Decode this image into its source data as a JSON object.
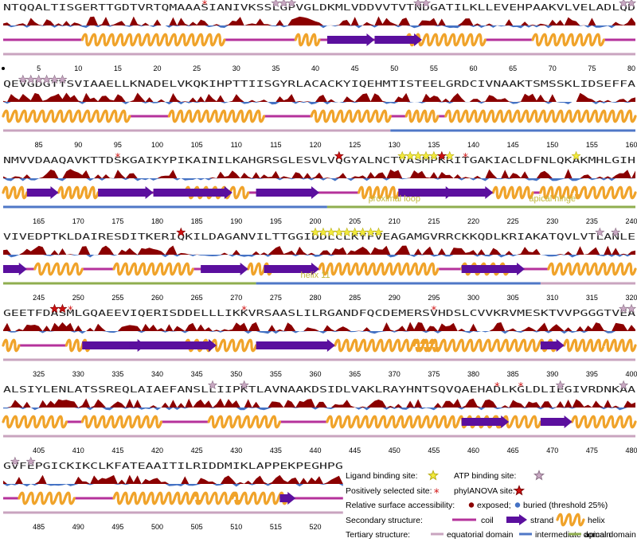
{
  "colors": {
    "exposed": "#8b0000",
    "buried": "#4472c4",
    "coil": "#b5329b",
    "strand": "#5b0f9e",
    "helix": "#f0a32a",
    "equatorial": "#c9a4bf",
    "intermediate": "#4f77c7",
    "apical": "#8fae4f",
    "ligand_star": "#f2ea3d",
    "atp_star": "#c8a8c2",
    "phyl_star": "#cc1111",
    "pos_sel": "#d11414",
    "region_label": "#c2b838"
  },
  "rows": [
    {
      "seq": "NTQQALTISGERTTGDTVRTQMAAASIANIVKSSLGPVGLDKMLVDDVVTVTNDGATILKLLEVEHPAAKVLVELADLQD",
      "start": 1
    },
    {
      "seq": "QEVGDGTTSVIAAELLKNADELVKQKIHPTTIISGYRLACACKYIQEHMTISTEELGRDCIVNAAKTSMSSKLIDSEFFA",
      "start": 81
    },
    {
      "seq": "NMVVDAAQAVKTTDSKGAIKYPIKAINILKAHGRSGLESVLVQGYALNCTVASMPKRITGAKIACLDFNLQKAKMHLGIH",
      "start": 161
    },
    {
      "seq": "VIVEDPTKLDAIRESDITKERIQKILDAGANVILTTGGIDDLCLKYFVEAGAMGVRRCKKQDLKRIAKATQVLVTLANLE",
      "start": 241
    },
    {
      "seq": "GEETFDASMLGQAEEVIQERISDDELLLIKKVRSAASLILRGANDFQCDEMERSVHDSLCVVKRVMESKTVVPGGGTVEA",
      "start": 321
    },
    {
      "seq": "ALSIYLENLATSSREQLAIAEFANSLLIIPKTLAVNAAKDSIDLVAKLRAYHNTSQVQAEHADLKGLDLIEGIVRDNKAA",
      "start": 401
    },
    {
      "seq": "GVFEPGICKIKCLKFATEAAITILRIDDMIKLAPPEKPEGHPG",
      "start": 481
    }
  ],
  "row_ticks": [
    [
      "5",
      "10",
      "15",
      "20",
      "25",
      "30",
      "35",
      "40",
      "45",
      "50",
      "55",
      "60",
      "65",
      "70",
      "75",
      "80"
    ],
    [
      "85",
      "90",
      "95",
      "100",
      "105",
      "110",
      "115",
      "120",
      "125",
      "130",
      "135",
      "140",
      "145",
      "150",
      "155",
      "160"
    ],
    [
      "165",
      "170",
      "175",
      "180",
      "185",
      "190",
      "195",
      "200",
      "205",
      "210",
      "215",
      "220",
      "225",
      "230",
      "235",
      "240"
    ],
    [
      "245",
      "250",
      "255",
      "260",
      "265",
      "270",
      "275",
      "280",
      "285",
      "290",
      "295",
      "300",
      "305",
      "310",
      "315",
      "320"
    ],
    [
      "325",
      "330",
      "335",
      "340",
      "345",
      "350",
      "355",
      "360",
      "365",
      "370",
      "375",
      "380",
      "385",
      "390",
      "395",
      "400"
    ],
    [
      "405",
      "410",
      "415",
      "420",
      "425",
      "430",
      "435",
      "440",
      "445",
      "450",
      "455",
      "460",
      "465",
      "470",
      "475",
      "480"
    ],
    [
      "485",
      "490",
      "495",
      "500",
      "505",
      "510",
      "515",
      "520"
    ]
  ],
  "secondary": [
    {
      "helices": [
        [
          11,
          28
        ],
        [
          38,
          40
        ],
        [
          52,
          61
        ],
        [
          68,
          76
        ]
      ],
      "strands": [
        [
          42,
          47
        ],
        [
          48,
          53
        ]
      ]
    },
    {
      "helices": [
        [
          1,
          16
        ],
        [
          22,
          33
        ],
        [
          40,
          49
        ],
        [
          52,
          55
        ],
        [
          57,
          80
        ]
      ],
      "strands": []
    },
    {
      "helices": [
        [
          1,
          3
        ],
        [
          8,
          12
        ],
        [
          24,
          31
        ],
        [
          46,
          50
        ],
        [
          63,
          67
        ],
        [
          69,
          73
        ],
        [
          73,
          80
        ]
      ],
      "strands": [
        [
          4,
          7
        ],
        [
          13,
          19
        ],
        [
          20,
          29
        ],
        [
          33,
          40
        ],
        [
          51,
          57
        ],
        [
          56,
          62
        ]
      ]
    },
    {
      "helices": [
        [
          5,
          10
        ],
        [
          15,
          24
        ],
        [
          32,
          34
        ],
        [
          41,
          55
        ],
        [
          59,
          64
        ],
        [
          70,
          80
        ]
      ],
      "strands": [
        [
          1,
          3
        ],
        [
          26,
          31
        ],
        [
          34,
          40
        ],
        [
          59,
          66
        ]
      ]
    },
    {
      "helices": [
        [
          1,
          2
        ],
        [
          9,
          11
        ],
        [
          24,
          32
        ],
        [
          43,
          55
        ],
        [
          53,
          70
        ],
        [
          72,
          76
        ],
        [
          77,
          80
        ]
      ],
      "strands": [
        [
          11,
          18
        ],
        [
          17,
          27
        ],
        [
          33,
          42
        ],
        [
          69,
          71
        ]
      ]
    },
    {
      "helices": [
        [
          1,
          8
        ],
        [
          11,
          20
        ],
        [
          27,
          35
        ],
        [
          42,
          50
        ],
        [
          51,
          63
        ],
        [
          63,
          68
        ],
        [
          73,
          80
        ]
      ],
      "strands": [
        [
          59,
          64
        ],
        [
          69,
          72
        ]
      ]
    },
    {
      "helices": [
        [
          3,
          9
        ],
        [
          15,
          25
        ],
        [
          25,
          30
        ],
        [
          30,
          36
        ]
      ],
      "strands": [
        [
          36,
          37
        ]
      ]
    }
  ],
  "tertiary": [
    [
      [
        "equatorial",
        1,
        80
      ]
    ],
    [
      [
        "equatorial",
        1,
        49
      ],
      [
        "intermediate",
        50,
        80
      ]
    ],
    [
      [
        "intermediate",
        1,
        41
      ],
      [
        "apical",
        42,
        80
      ]
    ],
    [
      [
        "apical",
        1,
        32
      ],
      [
        "intermediate",
        33,
        68
      ],
      [
        "equatorial",
        69,
        80
      ]
    ],
    [
      [
        "equatorial",
        1,
        80
      ]
    ],
    [
      [
        "equatorial",
        1,
        80
      ]
    ],
    [
      [
        "equatorial",
        1,
        43
      ]
    ]
  ],
  "region_labels": [
    {
      "row": 2,
      "pos": 50,
      "text": "proximal loop"
    },
    {
      "row": 2,
      "pos": 70,
      "text": "apical hinge"
    },
    {
      "row": 3,
      "pos": 40,
      "text": "helix 11"
    }
  ],
  "markers": {
    "atp": [
      [
        0,
        35
      ],
      [
        0,
        36
      ],
      [
        0,
        37
      ],
      [
        0,
        53
      ],
      [
        0,
        54
      ],
      [
        0,
        79
      ],
      [
        0,
        80
      ],
      [
        1,
        3
      ],
      [
        1,
        4
      ],
      [
        1,
        5
      ],
      [
        1,
        6
      ],
      [
        1,
        7
      ],
      [
        1,
        8
      ],
      [
        3,
        76
      ],
      [
        3,
        78
      ],
      [
        4,
        79
      ],
      [
        4,
        80
      ],
      [
        5,
        27
      ],
      [
        5,
        31
      ],
      [
        5,
        71
      ],
      [
        5,
        79
      ],
      [
        6,
        2
      ],
      [
        6,
        4
      ]
    ],
    "ligand": [
      [
        2,
        51
      ],
      [
        2,
        52
      ],
      [
        2,
        53
      ],
      [
        2,
        54
      ],
      [
        2,
        55
      ],
      [
        2,
        57
      ],
      [
        2,
        73
      ],
      [
        3,
        40
      ],
      [
        3,
        41
      ],
      [
        3,
        42
      ],
      [
        3,
        43
      ],
      [
        3,
        44
      ],
      [
        3,
        45
      ],
      [
        3,
        46
      ],
      [
        3,
        47
      ],
      [
        3,
        48
      ]
    ],
    "phyl": [
      [
        2,
        43
      ],
      [
        2,
        56
      ],
      [
        3,
        23
      ],
      [
        4,
        7
      ],
      [
        4,
        8
      ]
    ],
    "pos_sel": [
      [
        0,
        26
      ],
      [
        2,
        15
      ],
      [
        2,
        59
      ],
      [
        4,
        9
      ],
      [
        4,
        31
      ],
      [
        4,
        55
      ],
      [
        5,
        63
      ],
      [
        5,
        66
      ]
    ]
  },
  "legend": {
    "ligand": "Ligand binding site:",
    "atp": "ATP binding site:",
    "pos_sel": "Positively selected site:",
    "phyl": "phylANOVA site:",
    "rsa": "Relative surface accessibility:",
    "exposed": "exposed;",
    "buried": "buried (threshold 25%)",
    "secondary": "Secondary structure:",
    "coil": "coil",
    "strand": "strand",
    "helix": "helix",
    "tertiary": "Tertiary structure:",
    "equatorial": "equatorial domain",
    "intermediate": "intermediate domain",
    "apical": "apical domain"
  }
}
